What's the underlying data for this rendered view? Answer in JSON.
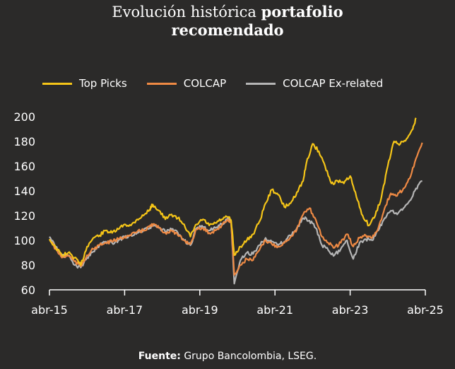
{
  "title": {
    "light": "Evolución histórica ",
    "bold": "portafolio",
    "line2": "recomendado"
  },
  "source": {
    "label": "Fuente:",
    "text": " Grupo Bancolombia, LSEG."
  },
  "colors": {
    "top_picks": "#f5c518",
    "colcap": "#ef8a44",
    "colcap_ex": "#b5b5b5",
    "background": "#2b2a29"
  },
  "chart_data": {
    "type": "line",
    "title": "Evolución histórica portafolio recomendado",
    "xlabel": "",
    "ylabel": "",
    "ylim": [
      60,
      200
    ],
    "yticks": [
      60,
      80,
      100,
      120,
      140,
      160,
      180,
      200
    ],
    "xlim": [
      "2015-04",
      "2025-04"
    ],
    "xtick_labels": [
      "abr-15",
      "abr-17",
      "abr-19",
      "abr-21",
      "abr-23",
      "abr-25"
    ],
    "legend_position": "top",
    "grid": false,
    "series": [
      {
        "name": "Top Picks",
        "color": "#f5c518",
        "points": [
          [
            "2015-04",
            101
          ],
          [
            "2015-06",
            94
          ],
          [
            "2015-08",
            88
          ],
          [
            "2015-10",
            90
          ],
          [
            "2015-12",
            86
          ],
          [
            "2016-02",
            80
          ],
          [
            "2016-04",
            95
          ],
          [
            "2016-06",
            102
          ],
          [
            "2016-08",
            104
          ],
          [
            "2016-10",
            108
          ],
          [
            "2016-12",
            106
          ],
          [
            "2017-02",
            109
          ],
          [
            "2017-04",
            113
          ],
          [
            "2017-06",
            112
          ],
          [
            "2017-08",
            117
          ],
          [
            "2017-10",
            120
          ],
          [
            "2017-12",
            125
          ],
          [
            "2018-01",
            129
          ],
          [
            "2018-03",
            124
          ],
          [
            "2018-05",
            117
          ],
          [
            "2018-07",
            121
          ],
          [
            "2018-09",
            118
          ],
          [
            "2018-11",
            113
          ],
          [
            "2019-01",
            103
          ],
          [
            "2019-03",
            113
          ],
          [
            "2019-05",
            117
          ],
          [
            "2019-07",
            112
          ],
          [
            "2019-09",
            114
          ],
          [
            "2019-11",
            117
          ],
          [
            "2020-01",
            119
          ],
          [
            "2020-02",
            116
          ],
          [
            "2020-03",
            88
          ],
          [
            "2020-05",
            95
          ],
          [
            "2020-07",
            100
          ],
          [
            "2020-09",
            105
          ],
          [
            "2020-11",
            115
          ],
          [
            "2021-01",
            130
          ],
          [
            "2021-03",
            141
          ],
          [
            "2021-05",
            137
          ],
          [
            "2021-07",
            127
          ],
          [
            "2021-09",
            130
          ],
          [
            "2021-11",
            139
          ],
          [
            "2022-01",
            148
          ],
          [
            "2022-02",
            162
          ],
          [
            "2022-04",
            178
          ],
          [
            "2022-06",
            172
          ],
          [
            "2022-08",
            160
          ],
          [
            "2022-10",
            146
          ],
          [
            "2022-12",
            148
          ],
          [
            "2023-02",
            146
          ],
          [
            "2023-04",
            152
          ],
          [
            "2023-06",
            135
          ],
          [
            "2023-08",
            120
          ],
          [
            "2023-10",
            112
          ],
          [
            "2023-12",
            120
          ],
          [
            "2024-02",
            135
          ],
          [
            "2024-04",
            160
          ],
          [
            "2024-06",
            180
          ],
          [
            "2024-08",
            178
          ],
          [
            "2024-10",
            182
          ],
          [
            "2024-12",
            190
          ],
          [
            "2025-01",
            199
          ]
        ]
      },
      {
        "name": "COLCAP",
        "color": "#ef8a44",
        "points": [
          [
            "2015-04",
            101
          ],
          [
            "2015-06",
            93
          ],
          [
            "2015-08",
            86
          ],
          [
            "2015-10",
            88
          ],
          [
            "2015-12",
            83
          ],
          [
            "2016-02",
            79
          ],
          [
            "2016-04",
            88
          ],
          [
            "2016-06",
            93
          ],
          [
            "2016-08",
            96
          ],
          [
            "2016-10",
            98
          ],
          [
            "2016-12",
            99
          ],
          [
            "2017-02",
            101
          ],
          [
            "2017-04",
            103
          ],
          [
            "2017-06",
            104
          ],
          [
            "2017-08",
            107
          ],
          [
            "2017-10",
            108
          ],
          [
            "2017-12",
            111
          ],
          [
            "2018-01",
            113
          ],
          [
            "2018-03",
            110
          ],
          [
            "2018-05",
            106
          ],
          [
            "2018-07",
            108
          ],
          [
            "2018-09",
            104
          ],
          [
            "2018-11",
            100
          ],
          [
            "2019-01",
            97
          ],
          [
            "2019-03",
            109
          ],
          [
            "2019-05",
            110
          ],
          [
            "2019-07",
            106
          ],
          [
            "2019-09",
            108
          ],
          [
            "2019-11",
            112
          ],
          [
            "2020-01",
            117
          ],
          [
            "2020-02",
            114
          ],
          [
            "2020-03",
            72
          ],
          [
            "2020-05",
            80
          ],
          [
            "2020-07",
            85
          ],
          [
            "2020-09",
            84
          ],
          [
            "2020-11",
            92
          ],
          [
            "2021-01",
            100
          ],
          [
            "2021-03",
            97
          ],
          [
            "2021-05",
            95
          ],
          [
            "2021-07",
            98
          ],
          [
            "2021-09",
            103
          ],
          [
            "2021-11",
            109
          ],
          [
            "2022-01",
            121
          ],
          [
            "2022-03",
            126
          ],
          [
            "2022-05",
            117
          ],
          [
            "2022-07",
            103
          ],
          [
            "2022-09",
            98
          ],
          [
            "2022-11",
            94
          ],
          [
            "2023-01",
            98
          ],
          [
            "2023-03",
            105
          ],
          [
            "2023-05",
            95
          ],
          [
            "2023-07",
            102
          ],
          [
            "2023-09",
            104
          ],
          [
            "2023-11",
            102
          ],
          [
            "2024-01",
            110
          ],
          [
            "2024-03",
            126
          ],
          [
            "2024-05",
            138
          ],
          [
            "2024-07",
            136
          ],
          [
            "2024-09",
            142
          ],
          [
            "2024-11",
            150
          ],
          [
            "2025-01",
            166
          ],
          [
            "2025-03",
            179
          ]
        ]
      },
      {
        "name": "COLCAP Ex-related",
        "color": "#b5b5b5",
        "points": [
          [
            "2015-04",
            103
          ],
          [
            "2015-06",
            95
          ],
          [
            "2015-08",
            87
          ],
          [
            "2015-10",
            88
          ],
          [
            "2015-12",
            80
          ],
          [
            "2016-02",
            78
          ],
          [
            "2016-04",
            86
          ],
          [
            "2016-06",
            91
          ],
          [
            "2016-08",
            96
          ],
          [
            "2016-10",
            99
          ],
          [
            "2016-12",
            98
          ],
          [
            "2017-02",
            100
          ],
          [
            "2017-04",
            103
          ],
          [
            "2017-06",
            104
          ],
          [
            "2017-08",
            106
          ],
          [
            "2017-10",
            108
          ],
          [
            "2017-12",
            110
          ],
          [
            "2018-01",
            112
          ],
          [
            "2018-03",
            110
          ],
          [
            "2018-05",
            107
          ],
          [
            "2018-07",
            109
          ],
          [
            "2018-09",
            106
          ],
          [
            "2018-11",
            100
          ],
          [
            "2019-01",
            96
          ],
          [
            "2019-03",
            110
          ],
          [
            "2019-05",
            111
          ],
          [
            "2019-07",
            108
          ],
          [
            "2019-09",
            110
          ],
          [
            "2019-11",
            113
          ],
          [
            "2020-01",
            118
          ],
          [
            "2020-02",
            115
          ],
          [
            "2020-03",
            65
          ],
          [
            "2020-05",
            84
          ],
          [
            "2020-07",
            90
          ],
          [
            "2020-09",
            89
          ],
          [
            "2020-11",
            96
          ],
          [
            "2021-01",
            102
          ],
          [
            "2021-03",
            99
          ],
          [
            "2021-05",
            96
          ],
          [
            "2021-07",
            99
          ],
          [
            "2021-09",
            104
          ],
          [
            "2021-11",
            110
          ],
          [
            "2022-01",
            118
          ],
          [
            "2022-03",
            116
          ],
          [
            "2022-05",
            110
          ],
          [
            "2022-07",
            96
          ],
          [
            "2022-09",
            92
          ],
          [
            "2022-11",
            88
          ],
          [
            "2023-01",
            93
          ],
          [
            "2023-03",
            100
          ],
          [
            "2023-05",
            85
          ],
          [
            "2023-07",
            98
          ],
          [
            "2023-09",
            101
          ],
          [
            "2023-11",
            100
          ],
          [
            "2024-01",
            108
          ],
          [
            "2024-03",
            118
          ],
          [
            "2024-05",
            124
          ],
          [
            "2024-07",
            121
          ],
          [
            "2024-09",
            126
          ],
          [
            "2024-11",
            132
          ],
          [
            "2025-01",
            142
          ],
          [
            "2025-03",
            148
          ]
        ]
      }
    ]
  }
}
